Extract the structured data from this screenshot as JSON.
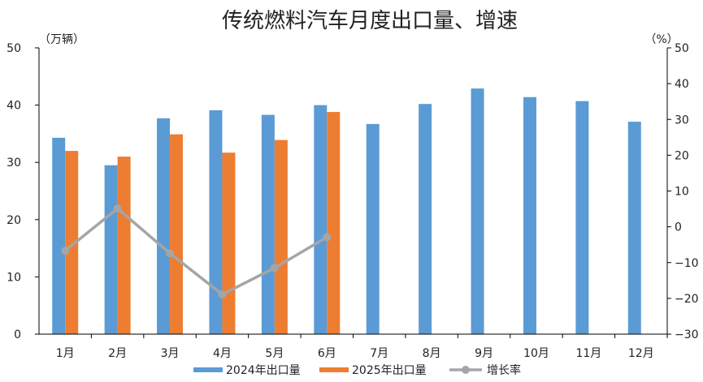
{
  "chart_data": {
    "type": "bar",
    "title": "传统燃料汽车月度出口量、增速",
    "left_unit": "（万辆）",
    "right_unit": "（%）",
    "categories": [
      "1月",
      "2月",
      "3月",
      "4月",
      "5月",
      "6月",
      "7月",
      "8月",
      "9月",
      "10月",
      "11月",
      "12月"
    ],
    "series": [
      {
        "name": "2024年出口量",
        "kind": "bar",
        "axis": "left",
        "color": "#5B9BD5",
        "values": [
          34.3,
          29.5,
          37.7,
          39.1,
          38.3,
          40.0,
          36.7,
          40.2,
          42.9,
          41.4,
          40.7,
          37.1
        ]
      },
      {
        "name": "2025年出口量",
        "kind": "bar",
        "axis": "left",
        "color": "#ED7D31",
        "values": [
          32.0,
          31.0,
          34.9,
          31.7,
          33.9,
          38.8,
          null,
          null,
          null,
          null,
          null,
          null
        ]
      },
      {
        "name": "增长率",
        "kind": "line",
        "axis": "right",
        "color": "#A5A5A5",
        "values": [
          -6.7,
          5.1,
          -7.4,
          -18.9,
          -11.5,
          -2.9,
          null,
          null,
          null,
          null,
          null,
          null
        ]
      }
    ],
    "left_axis": {
      "min": 0,
      "max": 50,
      "ticks": [
        "0",
        "10",
        "20",
        "30",
        "40",
        "50"
      ]
    },
    "right_axis": {
      "min": -30,
      "max": 50,
      "ticks": [
        "−30",
        "−20",
        "−10",
        "0",
        "10",
        "20",
        "30",
        "40",
        "50"
      ],
      "negative_color": "#E00000"
    },
    "grid": false,
    "legend_position": "bottom"
  }
}
